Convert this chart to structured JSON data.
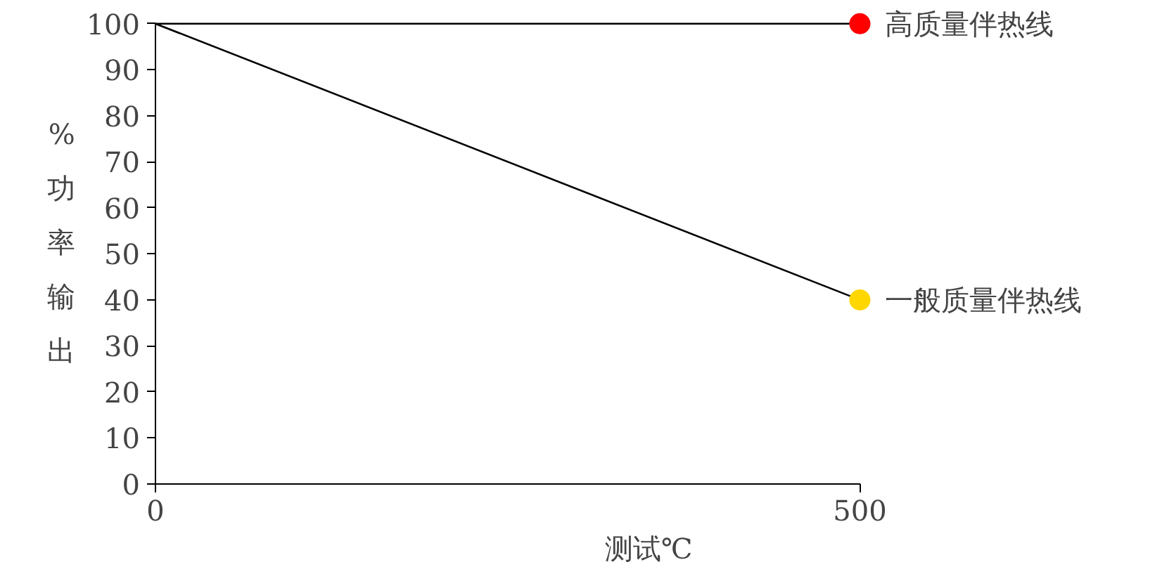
{
  "chart_data": {
    "type": "line",
    "xlabel": "测试℃",
    "ylabel": "%功率输出",
    "x": [
      0,
      500
    ],
    "xlim": [
      0,
      500
    ],
    "xticks": [
      0,
      500
    ],
    "ylim": [
      0,
      100
    ],
    "yticks": [
      0,
      10,
      20,
      30,
      40,
      50,
      60,
      70,
      80,
      90,
      100
    ],
    "grid": false,
    "series": [
      {
        "color": "#000000",
        "values": [
          100,
          100
        ]
      },
      {
        "color": "#000000",
        "values": [
          100,
          40
        ]
      },
      {
        "type": "scatter",
        "name": "高质量伴热线",
        "color": "#ff0000",
        "x": [
          500
        ],
        "values": [
          100
        ],
        "marker": "circle"
      },
      {
        "type": "scatter",
        "name": "一般质量伴热线",
        "color": "#ffd700",
        "x": [
          500
        ],
        "values": [
          40
        ],
        "marker": "circle"
      }
    ]
  }
}
